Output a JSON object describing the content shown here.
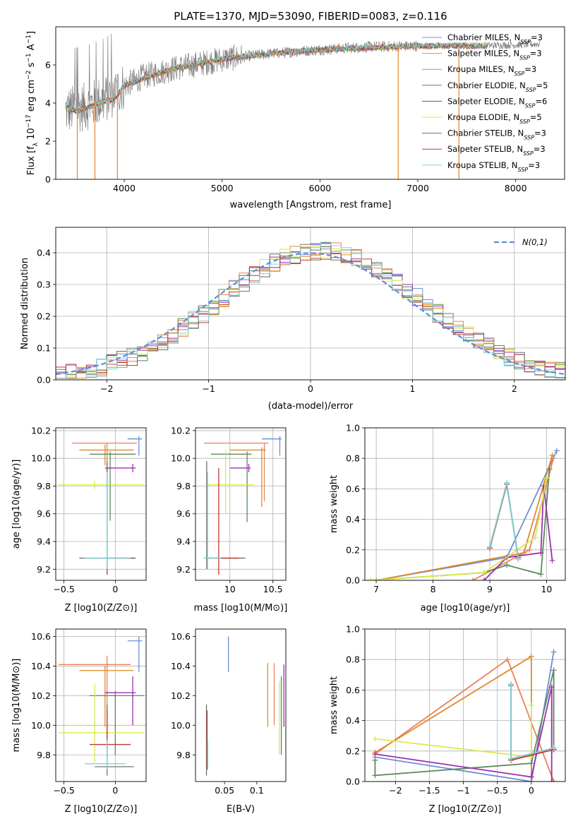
{
  "figure": {
    "title": "PLATE=1370, MJD=53090, FIBERID=0083, z=0.116"
  },
  "models": [
    {
      "key": "chabrier_miles",
      "label": "Chabrier MILES, N_SSP=3",
      "label_main": "Chabrier MILES, N",
      "label_sub": "SSP",
      "label_tail": "=3",
      "color": "#6a8fd8"
    },
    {
      "key": "salpeter_miles",
      "label": "Salpeter MILES, N_SSP=3",
      "label_main": "Salpeter MILES, N",
      "label_sub": "SSP",
      "label_tail": "=3",
      "color": "#e9825a"
    },
    {
      "key": "kroupa_miles",
      "label": "Kroupa MILES, N_SSP=3",
      "label_main": "Kroupa MILES, N",
      "label_sub": "SSP",
      "label_tail": "=3",
      "color": "#e0882a"
    },
    {
      "key": "chabrier_elodie",
      "label": "Chabrier ELODIE, N_SSP=5",
      "label_main": "Chabrier ELODIE, N",
      "label_sub": "SSP",
      "label_tail": "=5",
      "color": "#5a8a5a"
    },
    {
      "key": "salpeter_elodie",
      "label": "Salpeter ELODIE, N_SSP=6",
      "label_main": "Salpeter ELODIE, N",
      "label_sub": "SSP",
      "label_tail": "=6",
      "color": "#9b2fb0"
    },
    {
      "key": "kroupa_elodie",
      "label": "Kroupa ELODIE, N_SSP=5",
      "label_main": "Kroupa ELODIE, N",
      "label_sub": "SSP",
      "label_tail": "=5",
      "color": "#d8ea50"
    },
    {
      "key": "chabrier_stelib",
      "label": "Chabrier STELIB, N_SSP=3",
      "label_main": "Chabrier STELIB, N",
      "label_sub": "SSP",
      "label_tail": "=3",
      "color": "#707070"
    },
    {
      "key": "salpeter_stelib",
      "label": "Salpeter STELIB, N_SSP=3",
      "label_main": "Salpeter STELIB, N",
      "label_sub": "SSP",
      "label_tail": "=3",
      "color": "#c0392b"
    },
    {
      "key": "kroupa_stelib",
      "label": "Kroupa STELIB, N_SSP=3",
      "label_main": "Kroupa STELIB, N",
      "label_sub": "SSP",
      "label_tail": "=3",
      "color": "#7fd4d8"
    }
  ],
  "chart_data": [
    {
      "id": "spectrum",
      "type": "line",
      "xlabel": "wavelength [Angstrom, rest frame]",
      "ylabel": "Flux [f_λ 10^-17 erg cm^-2 s^-1 A^-1]",
      "xlim": [
        3300,
        8500
      ],
      "ylim": [
        0,
        8
      ],
      "xticks": [
        4000,
        5000,
        6000,
        7000,
        8000
      ],
      "yticks": [
        0,
        2,
        4,
        6
      ],
      "legend": "top-right",
      "grid": false,
      "data_color": "#7f7f7f",
      "model_color": "#7fd4d8",
      "data_continuum": {
        "x": [
          3400,
          3600,
          3800,
          4000,
          4200,
          4500,
          5000,
          5500,
          6000,
          6500,
          7000,
          7500,
          8000,
          8250
        ],
        "y": [
          3.6,
          3.8,
          4.2,
          4.9,
          5.4,
          5.8,
          6.3,
          6.6,
          6.8,
          6.95,
          7.0,
          7.0,
          7.05,
          7.1
        ]
      },
      "model_continuum": {
        "x": [
          3400,
          3500,
          3600,
          3700,
          3800,
          3900,
          4000,
          4200,
          4500,
          5000,
          5500,
          6000,
          6500,
          7000,
          7500,
          7700
        ],
        "y": [
          3.8,
          3.6,
          3.7,
          3.9,
          4.1,
          4.2,
          4.9,
          5.3,
          5.8,
          6.3,
          6.6,
          6.8,
          6.9,
          7.0,
          7.0,
          7.0
        ]
      }
    },
    {
      "id": "residuals",
      "type": "histogram",
      "xlabel": "(data-model)/error",
      "ylabel": "Normed distribution",
      "xlim": [
        -2.5,
        2.5
      ],
      "ylim": [
        0,
        0.48
      ],
      "xticks": [
        -2,
        -1,
        0,
        1,
        2
      ],
      "yticks": [
        0.0,
        0.1,
        0.2,
        0.3,
        0.4
      ],
      "grid": true,
      "legend": "top-right",
      "reference_label": "N(0,1)",
      "reference_color": "#5b8fd9",
      "bins": [
        -2.5,
        -2.4,
        -2.3,
        -2.2,
        -2.1,
        -2.0,
        -1.9,
        -1.8,
        -1.7,
        -1.6,
        -1.5,
        -1.4,
        -1.3,
        -1.2,
        -1.1,
        -1.0,
        -0.9,
        -0.8,
        -0.7,
        -0.6,
        -0.5,
        -0.4,
        -0.3,
        -0.2,
        -0.1,
        0.0,
        0.1,
        0.2,
        0.3,
        0.4,
        0.5,
        0.6,
        0.7,
        0.8,
        0.9,
        1.0,
        1.1,
        1.2,
        1.3,
        1.4,
        1.5,
        1.6,
        1.7,
        1.8,
        1.9,
        2.0,
        2.1,
        2.2,
        2.3,
        2.4,
        2.5
      ]
    },
    {
      "id": "age_vs_Z",
      "type": "errorbar",
      "xlabel": "Z [log10(Z/Z⊙)]",
      "ylabel": "age [log10(age/yr)]",
      "xlim": [
        -0.58,
        0.3
      ],
      "ylim": [
        9.12,
        10.22
      ],
      "xticks": [
        -0.5,
        0.0
      ],
      "yticks": [
        9.2,
        9.4,
        9.6,
        9.8,
        10.0,
        10.2
      ],
      "grid": true,
      "points": [
        {
          "model": "chabrier_miles",
          "x": 0.23,
          "y": 10.14,
          "xlo": 0.12,
          "xhi": 0.26,
          "ylo": 10.02,
          "yhi": 10.16
        },
        {
          "model": "salpeter_miles",
          "x": -0.08,
          "y": 10.11,
          "xlo": -0.42,
          "xhi": 0.21,
          "ylo": 9.65,
          "yhi": 10.11
        },
        {
          "model": "kroupa_miles",
          "x": -0.1,
          "y": 10.06,
          "xlo": -0.35,
          "xhi": 0.18,
          "ylo": 9.95,
          "yhi": 10.1
        },
        {
          "model": "chabrier_elodie",
          "x": -0.05,
          "y": 10.03,
          "xlo": -0.25,
          "xhi": 0.2,
          "ylo": 9.55,
          "yhi": 10.05
        },
        {
          "model": "salpeter_elodie",
          "x": 0.17,
          "y": 9.93,
          "xlo": -0.1,
          "xhi": 0.2,
          "ylo": 9.9,
          "yhi": 9.96
        },
        {
          "model": "kroupa_elodie",
          "x": -0.2,
          "y": 9.81,
          "xlo": -0.55,
          "xhi": 0.28,
          "ylo": 9.78,
          "yhi": 9.84
        },
        {
          "model": "chabrier_stelib",
          "x": -0.08,
          "y": 9.28,
          "xlo": -0.35,
          "xhi": 0.2,
          "ylo": 9.2,
          "yhi": 9.98
        },
        {
          "model": "salpeter_stelib",
          "x": -0.08,
          "y": 9.28,
          "xlo": -0.1,
          "xhi": 0.18,
          "ylo": 9.16,
          "yhi": 9.93
        },
        {
          "model": "kroupa_stelib",
          "x": -0.08,
          "y": 9.28,
          "xlo": -0.3,
          "xhi": 0.15,
          "ylo": 9.2,
          "yhi": 9.9
        }
      ]
    },
    {
      "id": "age_vs_mass",
      "type": "errorbar",
      "xlabel": "mass [log10(M/M⊙)]",
      "ylabel": "",
      "xlim": [
        9.6,
        10.65
      ],
      "ylim": [
        9.12,
        10.22
      ],
      "xticks": [
        10.0,
        10.5
      ],
      "yticks": [
        9.2,
        9.4,
        9.6,
        9.8,
        10.0,
        10.2
      ],
      "grid": true,
      "points": [
        {
          "model": "chabrier_miles",
          "x": 10.58,
          "y": 10.14,
          "xlo": 10.37,
          "xhi": 10.6,
          "ylo": 10.02,
          "yhi": 10.16
        },
        {
          "model": "salpeter_miles",
          "x": 10.4,
          "y": 10.11,
          "xlo": 9.7,
          "xhi": 10.45,
          "ylo": 9.69,
          "yhi": 10.11
        },
        {
          "model": "kroupa_miles",
          "x": 10.37,
          "y": 10.06,
          "xlo": 10.0,
          "xhi": 10.42,
          "ylo": 9.65,
          "yhi": 10.08
        },
        {
          "model": "chabrier_elodie",
          "x": 10.2,
          "y": 10.03,
          "xlo": 9.78,
          "xhi": 10.25,
          "ylo": 9.54,
          "yhi": 10.05
        },
        {
          "model": "salpeter_elodie",
          "x": 10.22,
          "y": 9.93,
          "xlo": 10.0,
          "xhi": 10.24,
          "ylo": 9.9,
          "yhi": 9.96
        },
        {
          "model": "kroupa_elodie",
          "x": 9.95,
          "y": 9.81,
          "xlo": 9.74,
          "xhi": 10.28,
          "ylo": 9.6,
          "yhi": 10.06
        },
        {
          "model": "chabrier_stelib",
          "x": 9.73,
          "y": 9.28,
          "xlo": 9.7,
          "xhi": 10.18,
          "ylo": 9.2,
          "yhi": 9.98
        },
        {
          "model": "salpeter_stelib",
          "x": 9.87,
          "y": 9.28,
          "xlo": 9.75,
          "xhi": 10.1,
          "ylo": 9.16,
          "yhi": 9.93
        },
        {
          "model": "kroupa_stelib",
          "x": 9.74,
          "y": 9.28,
          "xlo": 9.7,
          "xhi": 9.9,
          "ylo": 9.2,
          "yhi": 9.9
        }
      ]
    },
    {
      "id": "mass_weight_vs_age",
      "type": "line",
      "xlabel": "age [log10(age/yr)]",
      "ylabel": "mass weight",
      "xlim": [
        6.8,
        10.33
      ],
      "ylim": [
        0,
        1.0
      ],
      "xticks": [
        7,
        8,
        9,
        10
      ],
      "yticks": [
        0.0,
        0.2,
        0.4,
        0.6,
        0.8,
        1.0
      ],
      "grid": true,
      "series": [
        {
          "model": "chabrier_miles",
          "x": [
            7.0,
            9.3,
            10.18
          ],
          "y": [
            0.0,
            0.15,
            0.85
          ]
        },
        {
          "model": "salpeter_miles",
          "x": [
            8.7,
            9.7,
            10.12
          ],
          "y": [
            0.0,
            0.2,
            0.8
          ]
        },
        {
          "model": "kroupa_miles",
          "x": [
            7.0,
            9.6,
            10.1
          ],
          "y": [
            0.0,
            0.18,
            0.82
          ]
        },
        {
          "model": "chabrier_elodie",
          "x": [
            6.9,
            8.9,
            9.3,
            9.9,
            10.05
          ],
          "y": [
            0.0,
            0.05,
            0.1,
            0.04,
            0.73
          ]
        },
        {
          "model": "salpeter_elodie",
          "x": [
            8.9,
            9.3,
            9.9,
            9.95,
            10.1
          ],
          "y": [
            0.0,
            0.15,
            0.18,
            0.62,
            0.13
          ]
        },
        {
          "model": "kroupa_elodie",
          "x": [
            6.9,
            8.9,
            9.8,
            10.0
          ],
          "y": [
            0.0,
            0.05,
            0.28,
            0.67
          ]
        },
        {
          "model": "chabrier_stelib",
          "x": [
            9.0,
            9.3,
            9.5
          ],
          "y": [
            0.22,
            0.63,
            0.14
          ]
        },
        {
          "model": "salpeter_stelib",
          "x": [
            9.0,
            9.3,
            9.5
          ],
          "y": [
            0.21,
            0.63,
            0.15
          ]
        },
        {
          "model": "kroupa_stelib",
          "x": [
            9.0,
            9.3,
            9.5
          ],
          "y": [
            0.22,
            0.64,
            0.14
          ]
        }
      ]
    },
    {
      "id": "mass_vs_Z",
      "type": "errorbar",
      "xlabel": "Z [log10(Z/Z⊙)]",
      "ylabel": "mass [log10(M/M⊙)]",
      "xlim": [
        -0.58,
        0.3
      ],
      "ylim": [
        9.62,
        10.65
      ],
      "xticks": [
        -0.5,
        0.0
      ],
      "yticks": [
        9.8,
        10.0,
        10.2,
        10.4,
        10.6
      ],
      "grid": true,
      "points": [
        {
          "model": "chabrier_miles",
          "x": 0.23,
          "y": 10.57,
          "xlo": 0.12,
          "xhi": 0.26,
          "ylo": 10.36,
          "yhi": 10.6
        },
        {
          "model": "salpeter_miles",
          "x": -0.08,
          "y": 10.41,
          "xlo": -0.55,
          "xhi": 0.15,
          "ylo": 10.03,
          "yhi": 10.47
        },
        {
          "model": "kroupa_miles",
          "x": -0.1,
          "y": 10.37,
          "xlo": -0.35,
          "xhi": 0.18,
          "ylo": 9.99,
          "yhi": 10.4
        },
        {
          "model": "chabrier_elodie",
          "x": 0.0,
          "y": 10.2,
          "xlo": -0.25,
          "xhi": 0.28,
          "ylo": 9.8,
          "yhi": 10.23
        },
        {
          "model": "salpeter_elodie",
          "x": 0.17,
          "y": 10.22,
          "xlo": -0.1,
          "xhi": 0.2,
          "ylo": 10.0,
          "yhi": 10.33
        },
        {
          "model": "kroupa_elodie",
          "x": -0.2,
          "y": 9.95,
          "xlo": -0.55,
          "xhi": 0.28,
          "ylo": 9.75,
          "yhi": 10.28
        },
        {
          "model": "chabrier_stelib",
          "x": -0.08,
          "y": 9.72,
          "xlo": -0.2,
          "xhi": 0.18,
          "ylo": 9.66,
          "yhi": 10.14
        },
        {
          "model": "salpeter_stelib",
          "x": -0.08,
          "y": 9.87,
          "xlo": -0.25,
          "xhi": 0.15,
          "ylo": 9.75,
          "yhi": 10.1
        },
        {
          "model": "kroupa_stelib",
          "x": -0.08,
          "y": 9.74,
          "xlo": -0.3,
          "xhi": 0.1,
          "ylo": 9.7,
          "yhi": 9.9
        }
      ]
    },
    {
      "id": "mass_vs_ebv",
      "type": "errorbar",
      "xlabel": "E(B-V)",
      "ylabel": "",
      "xlim": [
        0.005,
        0.145
      ],
      "ylim": [
        9.62,
        10.65
      ],
      "xticks": [
        0.05,
        0.1
      ],
      "yticks": [
        9.8,
        10.0,
        10.2,
        10.4,
        10.6
      ],
      "grid": false,
      "points": [
        {
          "model": "chabrier_miles",
          "x": 0.056,
          "y": 10.57,
          "xlo": 0.056,
          "xhi": 0.056,
          "ylo": 10.36,
          "yhi": 10.6
        },
        {
          "model": "salpeter_miles",
          "x": 0.127,
          "y": 10.41,
          "xlo": 0.127,
          "xhi": 0.127,
          "ylo": 10.0,
          "yhi": 10.42
        },
        {
          "model": "kroupa_miles",
          "x": 0.117,
          "y": 10.37,
          "xlo": 0.117,
          "xhi": 0.117,
          "ylo": 9.99,
          "yhi": 10.42
        },
        {
          "model": "chabrier_elodie",
          "x": 0.138,
          "y": 10.2,
          "xlo": 0.138,
          "xhi": 0.138,
          "ylo": 9.8,
          "yhi": 10.33
        },
        {
          "model": "salpeter_elodie",
          "x": 0.142,
          "y": 10.22,
          "xlo": 0.142,
          "xhi": 0.142,
          "ylo": 9.99,
          "yhi": 10.41
        },
        {
          "model": "kroupa_elodie",
          "x": 0.135,
          "y": 9.95,
          "xlo": 0.135,
          "xhi": 0.135,
          "ylo": 9.8,
          "yhi": 10.3
        },
        {
          "model": "chabrier_stelib",
          "x": 0.022,
          "y": 9.72,
          "xlo": 0.022,
          "xhi": 0.022,
          "ylo": 9.66,
          "yhi": 10.14
        },
        {
          "model": "salpeter_stelib",
          "x": 0.023,
          "y": 9.87,
          "xlo": 0.023,
          "xhi": 0.023,
          "ylo": 9.7,
          "yhi": 10.1
        },
        {
          "model": "kroupa_stelib",
          "x": 0.024,
          "y": 9.74,
          "xlo": 0.024,
          "xhi": 0.024,
          "ylo": 9.7,
          "yhi": 9.9
        }
      ]
    },
    {
      "id": "mass_weight_vs_Z",
      "type": "line",
      "xlabel": "Z [log10(Z/Z⊙)]",
      "ylabel": "mass weight",
      "xlim": [
        -2.45,
        0.5
      ],
      "ylim": [
        0,
        1.0
      ],
      "xticks": [
        -2.0,
        -1.5,
        -1.0,
        -0.5,
        0.0
      ],
      "yticks": [
        0.0,
        0.2,
        0.4,
        0.6,
        0.8,
        1.0
      ],
      "grid": true,
      "series": [
        {
          "model": "chabrier_miles",
          "x": [
            -2.3,
            0.0,
            0.33
          ],
          "y": [
            0.16,
            0.0,
            0.85
          ]
        },
        {
          "model": "salpeter_miles",
          "x": [
            -2.3,
            -0.35,
            0.33
          ],
          "y": [
            0.18,
            0.8,
            0.0
          ]
        },
        {
          "model": "kroupa_miles",
          "x": [
            -2.3,
            0.0,
            0.0
          ],
          "y": [
            0.19,
            0.82,
            0.0
          ]
        },
        {
          "model": "chabrier_elodie",
          "x": [
            -2.3,
            -2.3,
            0.0,
            0.33,
            0.33
          ],
          "y": [
            0.14,
            0.04,
            0.12,
            0.73,
            0.21
          ]
        },
        {
          "model": "salpeter_elodie",
          "x": [
            -2.3,
            0.0,
            0.3,
            0.3
          ],
          "y": [
            0.18,
            0.03,
            0.62,
            0.0
          ]
        },
        {
          "model": "kroupa_elodie",
          "x": [
            -2.3,
            0.0,
            0.0
          ],
          "y": [
            0.28,
            0.16,
            0.5
          ]
        },
        {
          "model": "chabrier_stelib",
          "x": [
            -0.3,
            -0.3,
            0.33
          ],
          "y": [
            0.63,
            0.15,
            0.22
          ]
        },
        {
          "model": "salpeter_stelib",
          "x": [
            -0.3,
            -0.3,
            0.33
          ],
          "y": [
            0.63,
            0.14,
            0.21
          ]
        },
        {
          "model": "kroupa_stelib",
          "x": [
            -0.3,
            -0.3,
            0.33
          ],
          "y": [
            0.64,
            0.15,
            0.22
          ]
        }
      ]
    }
  ]
}
